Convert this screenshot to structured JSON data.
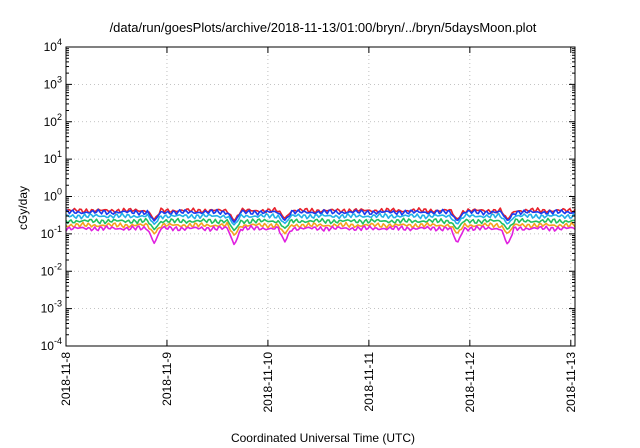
{
  "chart_data": {
    "type": "line",
    "title": "/data/run/goesPlots/archive/2018-11-13/01:00/bryn/../bryn/5daysMoon.plot",
    "xlabel": "Coordinated Universal Time (UTC)",
    "ylabel": "cGy/day",
    "yscale": "log",
    "ylim": [
      0.0001,
      10000
    ],
    "y_ticks": [
      {
        "value": 0.0001,
        "base": "10",
        "exp": "-4"
      },
      {
        "value": 0.001,
        "base": "10",
        "exp": "-3"
      },
      {
        "value": 0.01,
        "base": "10",
        "exp": "-2"
      },
      {
        "value": 0.1,
        "base": "10",
        "exp": "-1"
      },
      {
        "value": 1,
        "base": "10",
        "exp": "0"
      },
      {
        "value": 10,
        "base": "10",
        "exp": "1"
      },
      {
        "value": 100,
        "base": "10",
        "exp": "2"
      },
      {
        "value": 1000,
        "base": "10",
        "exp": "3"
      },
      {
        "value": 10000,
        "base": "10",
        "exp": "4"
      }
    ],
    "xlim": [
      "2018-11-08",
      "2018-11-13 01:00"
    ],
    "x_ticks": [
      "2018-11-8",
      "2018-11-9",
      "2018-11-10",
      "2018-11-11",
      "2018-11-12",
      "2018-11-13"
    ],
    "grid": true,
    "dips": [
      "2018-11-08 21:00",
      "2018-11-09 16:00",
      "2018-11-10 04:00",
      "2018-11-11 21:00",
      "2018-11-12 09:00"
    ],
    "series": [
      {
        "color": "#e8202a",
        "x": [
          "2018-11-08",
          "2018-11-13 01:00"
        ],
        "values": [
          0.42,
          0.42
        ],
        "dip_values": [
          0.24,
          0.22,
          0.26,
          0.24,
          0.24
        ]
      },
      {
        "color": "#1a3cf0",
        "x": [
          "2018-11-08",
          "2018-11-13 01:00"
        ],
        "values": [
          0.38,
          0.38
        ],
        "dip_values": [
          0.22,
          0.2,
          0.23,
          0.22,
          0.22
        ]
      },
      {
        "color": "#22b0e8",
        "x": [
          "2018-11-08",
          "2018-11-13 01:00"
        ],
        "values": [
          0.3,
          0.3
        ],
        "dip_values": [
          0.18,
          0.17,
          0.19,
          0.18,
          0.18
        ]
      },
      {
        "color": "#20c060",
        "x": [
          "2018-11-08",
          "2018-11-13 01:00"
        ],
        "values": [
          0.22,
          0.22
        ],
        "dip_values": [
          0.13,
          0.12,
          0.14,
          0.13,
          0.13
        ]
      },
      {
        "color": "#f5a020",
        "x": [
          "2018-11-08",
          "2018-11-13 01:00"
        ],
        "values": [
          0.17,
          0.17
        ],
        "dip_values": [
          0.1,
          0.09,
          0.1,
          0.1,
          0.1
        ]
      },
      {
        "color": "#e020e0",
        "x": [
          "2018-11-08",
          "2018-11-13 01:00"
        ],
        "values": [
          0.14,
          0.14
        ],
        "dip_values": [
          0.055,
          0.05,
          0.06,
          0.055,
          0.05
        ]
      }
    ]
  }
}
